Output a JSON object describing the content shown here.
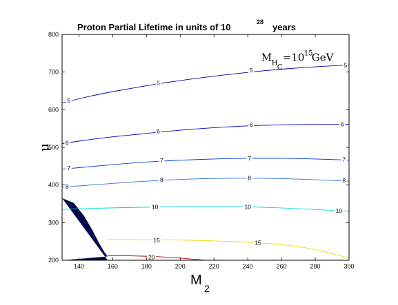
{
  "chart_data": {
    "type": "contour",
    "title": "Proton Partial Lifetime in units of 10",
    "title_exponent": "28",
    "title_suffix": "years",
    "xlabel": "M",
    "xlabel_sub": "2",
    "ylabel": "μ",
    "xlim": [
      130,
      300
    ],
    "ylim": [
      200,
      800
    ],
    "xticks": [
      140,
      160,
      180,
      200,
      220,
      240,
      260,
      280,
      300
    ],
    "yticks": [
      200,
      300,
      400,
      500,
      600,
      700,
      800
    ],
    "annotation": {
      "base": "M",
      "sub1": "H",
      "sub2": "C",
      "eq": "=10",
      "exp": "15",
      "unit": "GeV",
      "x": 248,
      "y": 730
    },
    "excluded_region": {
      "color": "#000a4a",
      "points": [
        [
          130,
          365
        ],
        [
          137,
          352
        ],
        [
          143,
          318
        ],
        [
          148,
          280
        ],
        [
          152,
          245
        ],
        [
          155,
          222
        ],
        [
          157,
          210
        ],
        [
          130,
          200
        ],
        [
          157,
          200
        ]
      ]
    },
    "contours": [
      {
        "level": "5",
        "color": "#0000a0",
        "points": [
          [
            130,
            618
          ],
          [
            150,
            640
          ],
          [
            175,
            660
          ],
          [
            200,
            678
          ],
          [
            225,
            692
          ],
          [
            250,
            704
          ],
          [
            275,
            713
          ],
          [
            300,
            719
          ]
        ],
        "labels": [
          [
            134,
            624
          ],
          [
            187,
            671
          ],
          [
            242,
            705
          ],
          [
            298,
            719
          ]
        ]
      },
      {
        "level": "6",
        "color": "#0000c8",
        "points": [
          [
            130,
            510
          ],
          [
            150,
            523
          ],
          [
            175,
            535
          ],
          [
            200,
            546
          ],
          [
            225,
            554
          ],
          [
            250,
            559
          ],
          [
            275,
            561
          ],
          [
            300,
            561
          ]
        ],
        "labels": [
          [
            133,
            512
          ],
          [
            187,
            543
          ],
          [
            242,
            560
          ],
          [
            296,
            561
          ]
        ]
      },
      {
        "level": "7",
        "color": "#0040e0",
        "points": [
          [
            130,
            442
          ],
          [
            150,
            450
          ],
          [
            175,
            460
          ],
          [
            200,
            466
          ],
          [
            225,
            470
          ],
          [
            250,
            471
          ],
          [
            275,
            470
          ],
          [
            300,
            466
          ]
        ],
        "labels": [
          [
            134,
            445
          ],
          [
            189,
            465
          ],
          [
            241,
            471
          ],
          [
            297,
            468
          ]
        ]
      },
      {
        "level": "8",
        "color": "#3070e0",
        "points": [
          [
            130,
            394
          ],
          [
            150,
            401
          ],
          [
            175,
            409
          ],
          [
            200,
            415
          ],
          [
            225,
            418
          ],
          [
            250,
            418
          ],
          [
            275,
            415
          ],
          [
            300,
            410
          ]
        ],
        "labels": [
          [
            133,
            396
          ],
          [
            189,
            414
          ],
          [
            241,
            419
          ],
          [
            297,
            412
          ]
        ]
      },
      {
        "level": "10",
        "color": "#00d8d8",
        "points": [
          [
            130,
            335
          ],
          [
            155,
            339
          ],
          [
            180,
            341
          ],
          [
            205,
            343
          ],
          [
            230,
            343
          ],
          [
            255,
            340
          ],
          [
            280,
            335
          ],
          [
            300,
            330
          ]
        ],
        "labels": [
          [
            185,
            342
          ],
          [
            240,
            342
          ],
          [
            294,
            332
          ]
        ]
      },
      {
        "level": "15",
        "color": "#e8e000",
        "points": [
          [
            157,
            255
          ],
          [
            175,
            255
          ],
          [
            200,
            254
          ],
          [
            225,
            251
          ],
          [
            250,
            246
          ],
          [
            275,
            235
          ],
          [
            300,
            206
          ]
        ],
        "labels": [
          [
            186,
            253
          ],
          [
            246,
            247
          ]
        ]
      },
      {
        "level": "20",
        "color": "#a00000",
        "points": [
          [
            157,
            212
          ],
          [
            170,
            212
          ],
          [
            185,
            210
          ],
          [
            200,
            206
          ],
          [
            215,
            200
          ]
        ],
        "labels": [
          [
            183,
            208
          ]
        ]
      }
    ]
  }
}
